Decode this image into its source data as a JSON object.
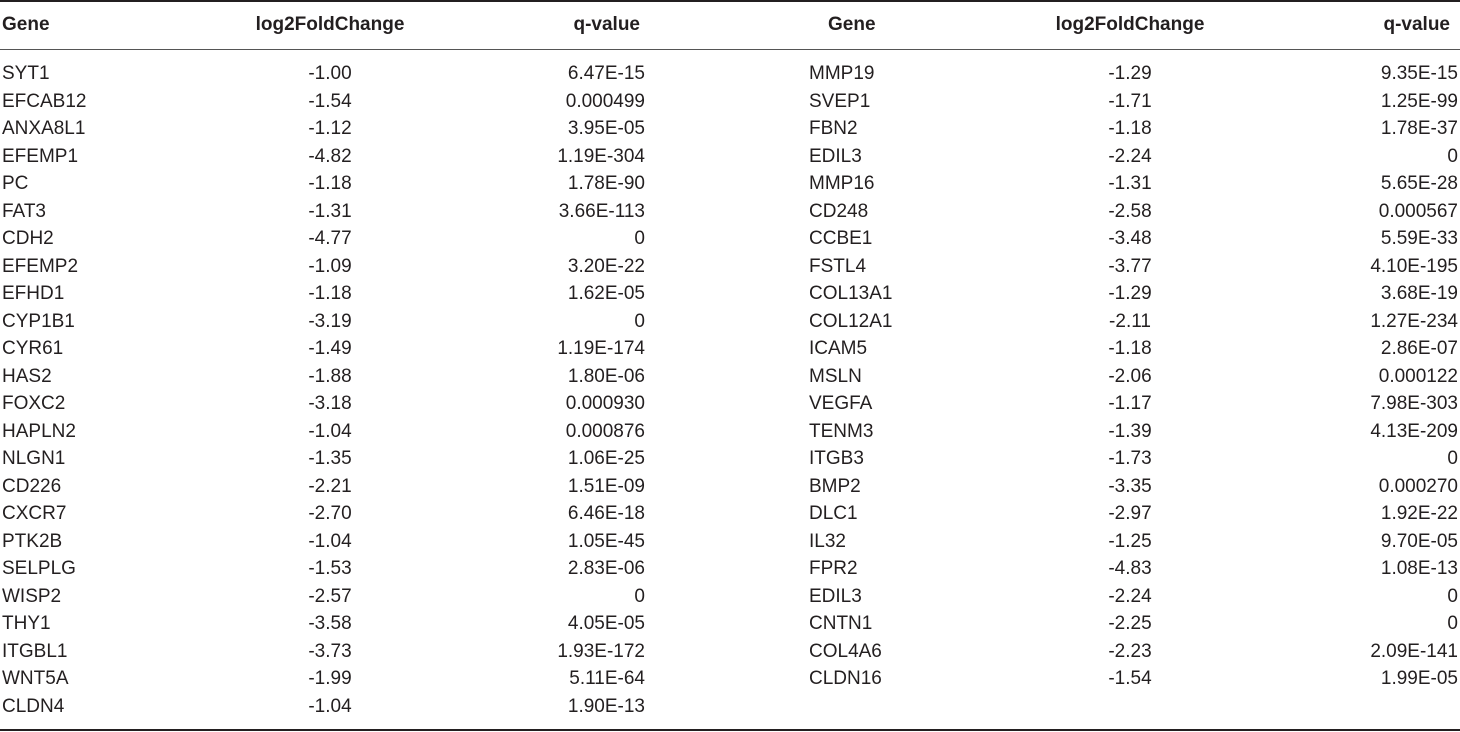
{
  "headers": {
    "gene": "Gene",
    "fold_change": "log2FoldChange",
    "q_value": "q-value"
  },
  "left_rows": [
    {
      "gene": "SYT1",
      "fc": "-1.00",
      "q": "6.47E-15"
    },
    {
      "gene": "EFCAB12",
      "fc": "-1.54",
      "q": "0.000499"
    },
    {
      "gene": "ANXA8L1",
      "fc": "-1.12",
      "q": "3.95E-05"
    },
    {
      "gene": "EFEMP1",
      "fc": "-4.82",
      "q": "1.19E-304"
    },
    {
      "gene": "PC",
      "fc": "-1.18",
      "q": "1.78E-90"
    },
    {
      "gene": "FAT3",
      "fc": "-1.31",
      "q": "3.66E-113"
    },
    {
      "gene": "CDH2",
      "fc": "-4.77",
      "q": "0"
    },
    {
      "gene": "EFEMP2",
      "fc": "-1.09",
      "q": "3.20E-22"
    },
    {
      "gene": "EFHD1",
      "fc": "-1.18",
      "q": "1.62E-05"
    },
    {
      "gene": "CYP1B1",
      "fc": "-3.19",
      "q": "0"
    },
    {
      "gene": "CYR61",
      "fc": "-1.49",
      "q": "1.19E-174"
    },
    {
      "gene": "HAS2",
      "fc": "-1.88",
      "q": "1.80E-06"
    },
    {
      "gene": "FOXC2",
      "fc": "-3.18",
      "q": "0.000930"
    },
    {
      "gene": "HAPLN2",
      "fc": "-1.04",
      "q": "0.000876"
    },
    {
      "gene": "NLGN1",
      "fc": "-1.35",
      "q": "1.06E-25"
    },
    {
      "gene": "CD226",
      "fc": "-2.21",
      "q": "1.51E-09"
    },
    {
      "gene": "CXCR7",
      "fc": "-2.70",
      "q": "6.46E-18"
    },
    {
      "gene": "PTK2B",
      "fc": "-1.04",
      "q": "1.05E-45"
    },
    {
      "gene": "SELPLG",
      "fc": "-1.53",
      "q": "2.83E-06"
    },
    {
      "gene": "WISP2",
      "fc": "-2.57",
      "q": "0"
    },
    {
      "gene": "THY1",
      "fc": "-3.58",
      "q": "4.05E-05"
    },
    {
      "gene": "ITGBL1",
      "fc": "-3.73",
      "q": "1.93E-172"
    },
    {
      "gene": "WNT5A",
      "fc": "-1.99",
      "q": "5.11E-64"
    },
    {
      "gene": "CLDN4",
      "fc": "-1.04",
      "q": "1.90E-13"
    }
  ],
  "right_rows": [
    {
      "gene": "MMP19",
      "fc": "-1.29",
      "q": "9.35E-15"
    },
    {
      "gene": "SVEP1",
      "fc": "-1.71",
      "q": "1.25E-99"
    },
    {
      "gene": "FBN2",
      "fc": "-1.18",
      "q": "1.78E-37"
    },
    {
      "gene": "EDIL3",
      "fc": "-2.24",
      "q": "0"
    },
    {
      "gene": "MMP16",
      "fc": "-1.31",
      "q": "5.65E-28"
    },
    {
      "gene": "CD248",
      "fc": "-2.58",
      "q": "0.000567"
    },
    {
      "gene": "CCBE1",
      "fc": "-3.48",
      "q": "5.59E-33"
    },
    {
      "gene": "FSTL4",
      "fc": "-3.77",
      "q": "4.10E-195"
    },
    {
      "gene": "COL13A1",
      "fc": "-1.29",
      "q": "3.68E-19"
    },
    {
      "gene": "COL12A1",
      "fc": "-2.11",
      "q": "1.27E-234"
    },
    {
      "gene": "ICAM5",
      "fc": "-1.18",
      "q": "2.86E-07"
    },
    {
      "gene": "MSLN",
      "fc": "-2.06",
      "q": "0.000122"
    },
    {
      "gene": "VEGFA",
      "fc": "-1.17",
      "q": "7.98E-303"
    },
    {
      "gene": "TENM3",
      "fc": "-1.39",
      "q": "4.13E-209"
    },
    {
      "gene": "ITGB3",
      "fc": "-1.73",
      "q": "0"
    },
    {
      "gene": "BMP2",
      "fc": "-3.35",
      "q": "0.000270"
    },
    {
      "gene": "DLC1",
      "fc": "-2.97",
      "q": "1.92E-22"
    },
    {
      "gene": "IL32",
      "fc": "-1.25",
      "q": "9.70E-05"
    },
    {
      "gene": "FPR2",
      "fc": "-4.83",
      "q": "1.08E-13"
    },
    {
      "gene": "EDIL3",
      "fc": "-2.24",
      "q": "0"
    },
    {
      "gene": "CNTN1",
      "fc": "-2.25",
      "q": "0"
    },
    {
      "gene": "COL4A6",
      "fc": "-2.23",
      "q": "2.09E-141"
    },
    {
      "gene": "CLDN16",
      "fc": "-1.54",
      "q": "1.99E-05"
    }
  ]
}
